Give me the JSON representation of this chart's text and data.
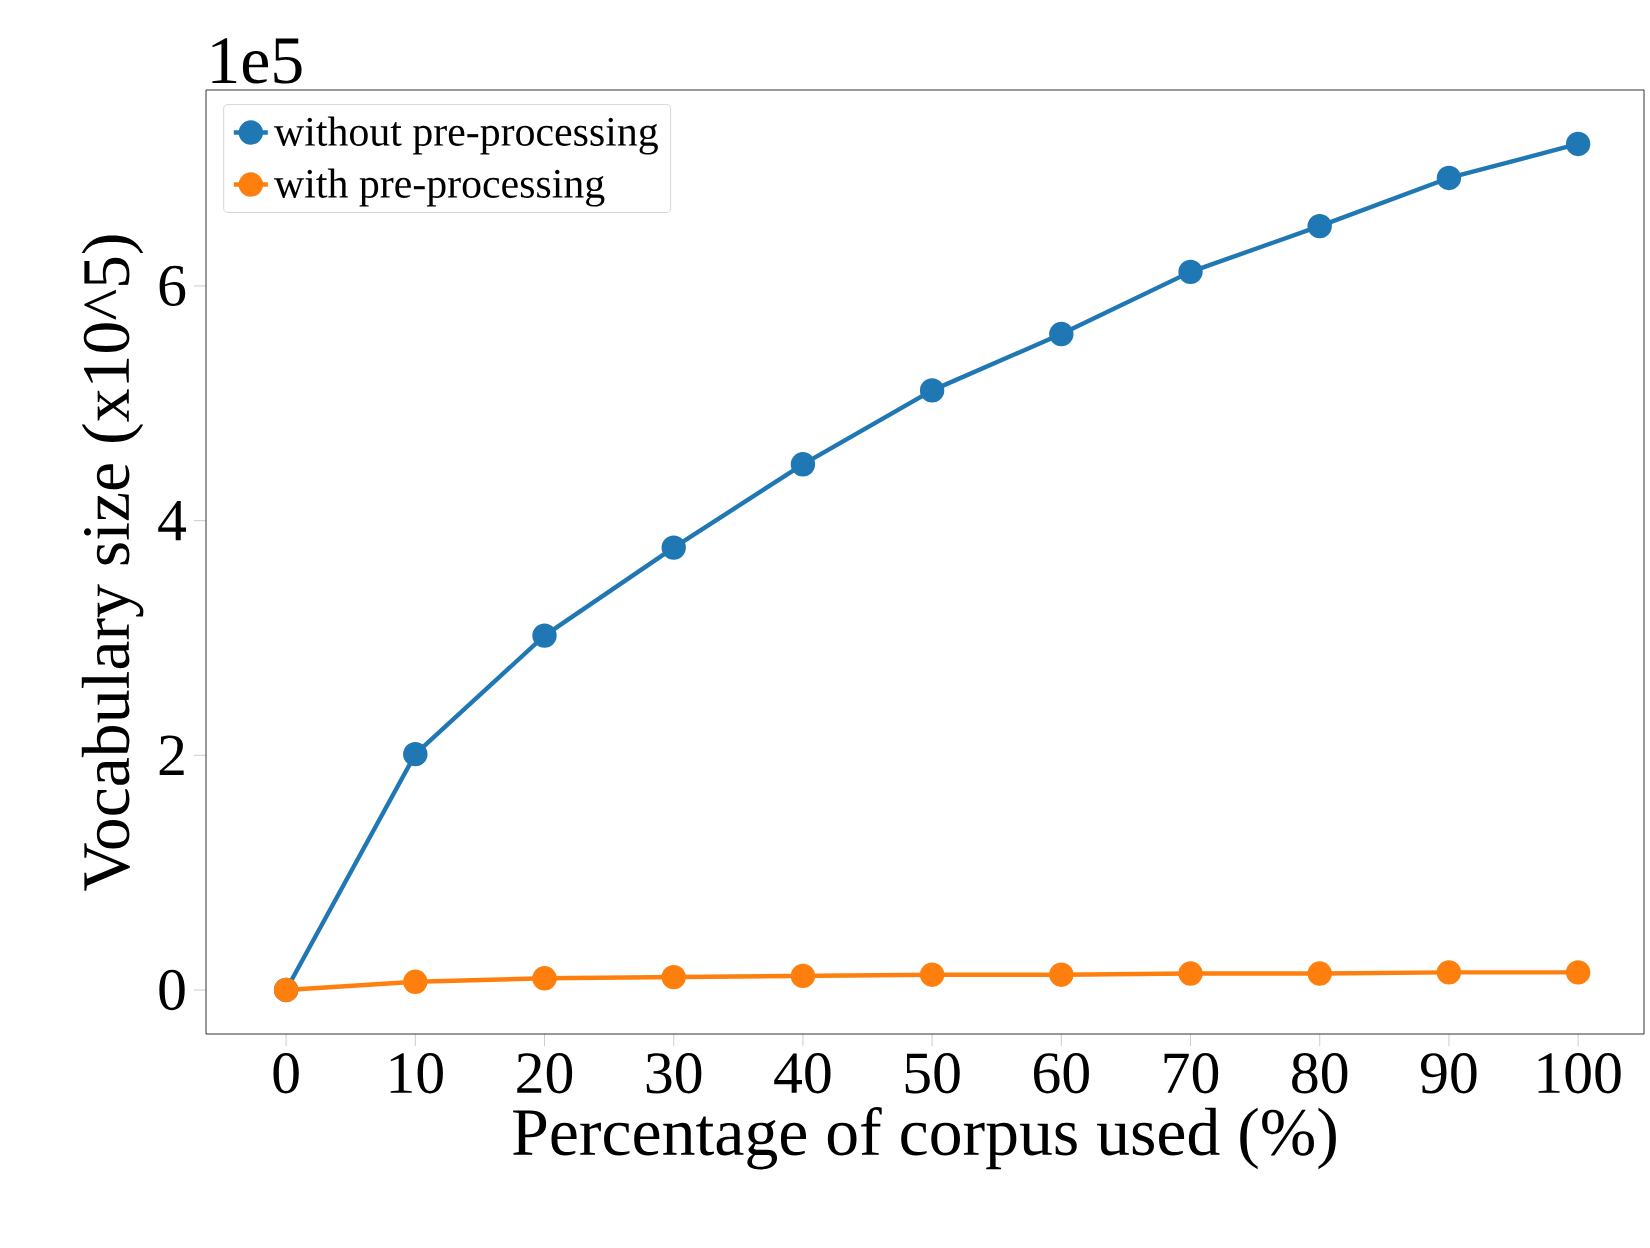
{
  "chart_data": {
    "type": "line",
    "xlabel": "Percentage of corpus used (%)",
    "ylabel": "Vocabulary size (x10^5)",
    "annotations": [
      "1e5"
    ],
    "x": [
      0,
      10,
      20,
      30,
      40,
      50,
      60,
      70,
      80,
      90,
      100
    ],
    "series": [
      {
        "name": "without pre-processing",
        "color": "#1f77b4",
        "values": [
          0,
          2.01,
          3.02,
          3.77,
          4.48,
          5.11,
          5.59,
          6.12,
          6.51,
          6.92,
          7.21
        ]
      },
      {
        "name": "with pre-processing",
        "color": "#ff7f0e",
        "values": [
          0,
          0.07,
          0.1,
          0.11,
          0.12,
          0.13,
          0.13,
          0.14,
          0.14,
          0.15,
          0.15
        ]
      }
    ],
    "xlim": [
      -6.2,
      105.1
    ],
    "ylim": [
      -0.375,
      7.67
    ],
    "xticks": [
      0,
      10,
      20,
      30,
      40,
      50,
      60,
      70,
      80,
      90,
      100
    ],
    "yticks": [
      0,
      2,
      4,
      6
    ],
    "marker": "circle",
    "line_style": "solid",
    "grid": false,
    "legend": "top left"
  }
}
